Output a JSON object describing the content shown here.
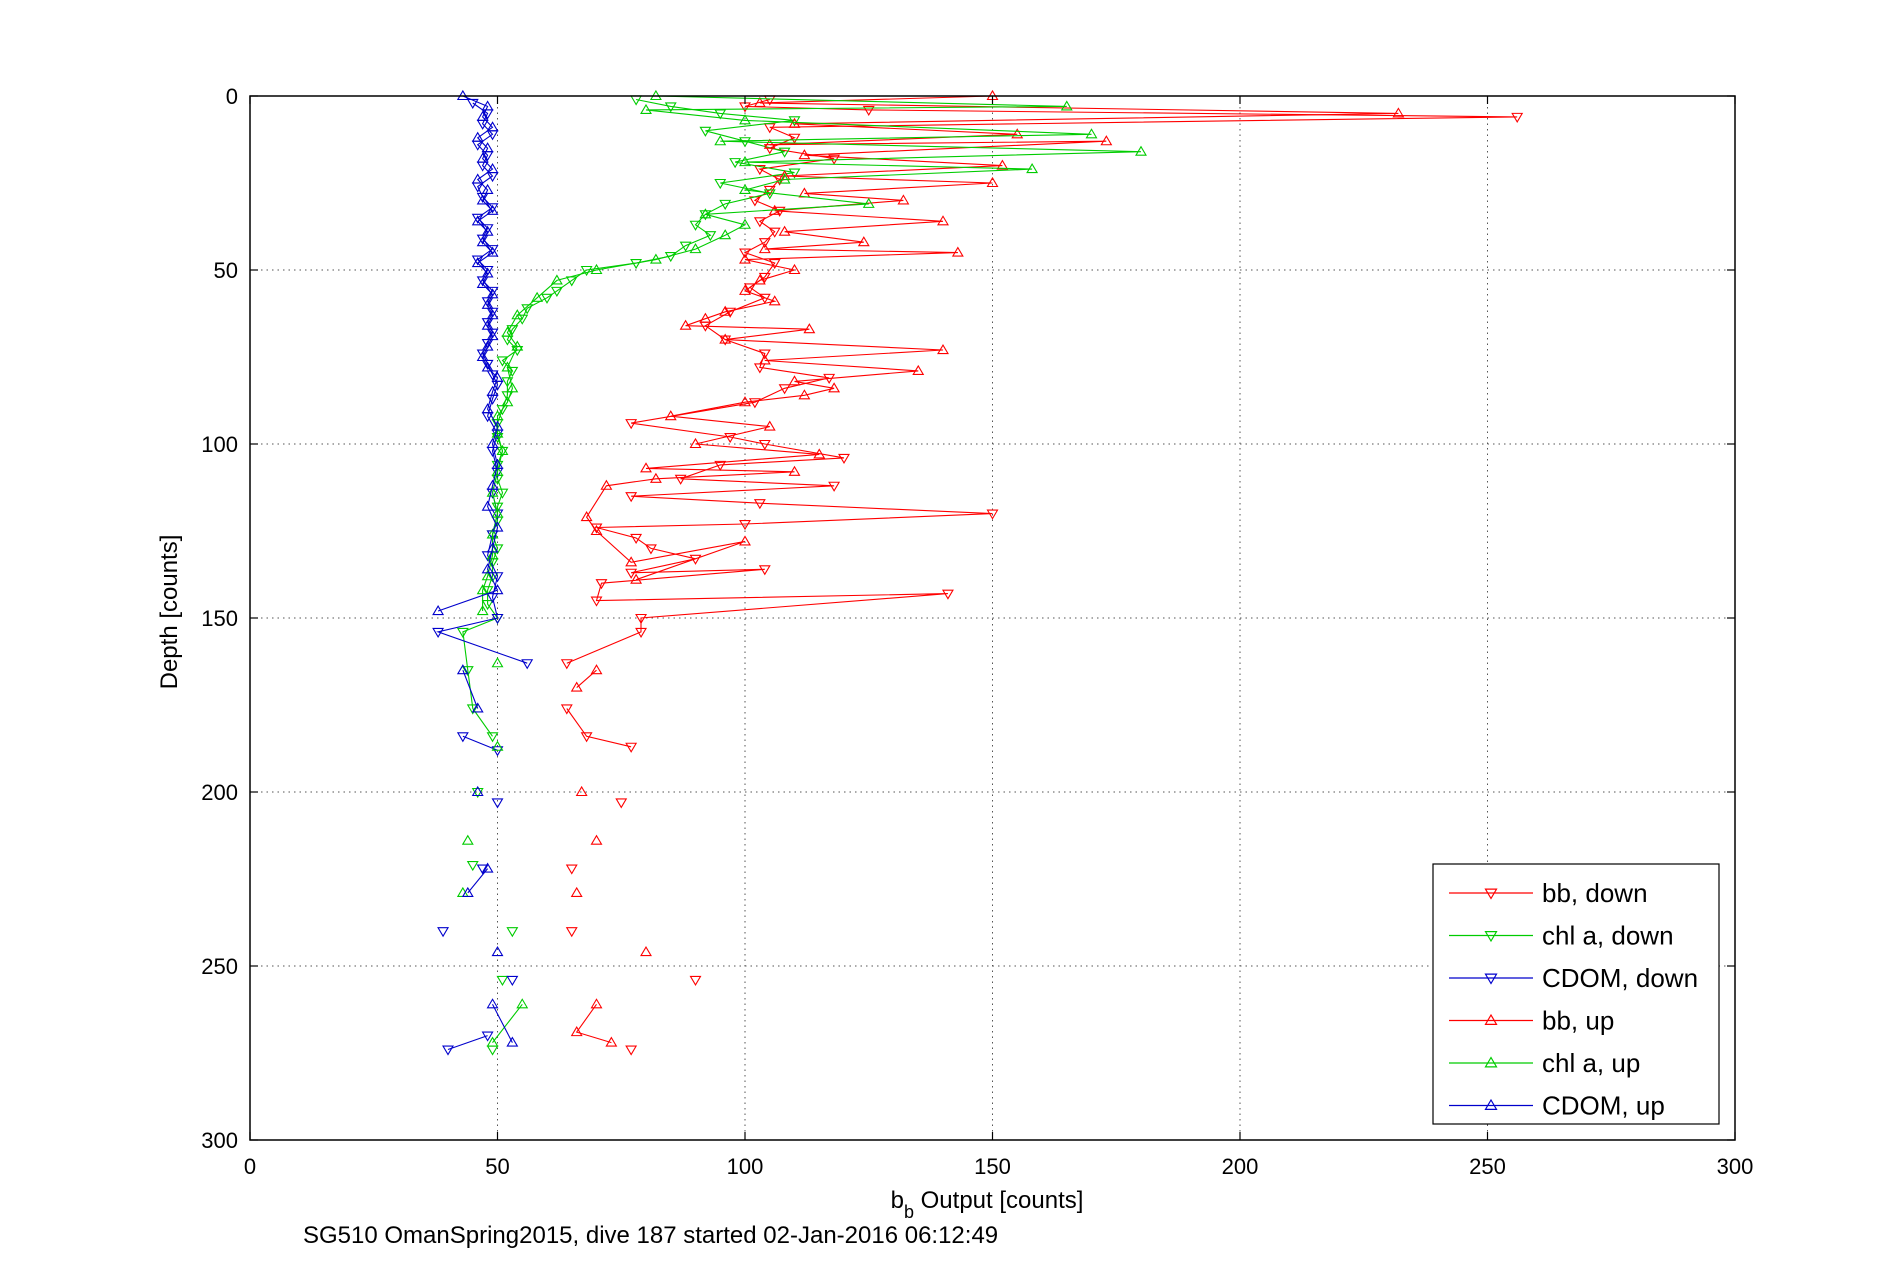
{
  "chart_data": {
    "type": "line",
    "title": "",
    "xlabel": "b_b Output [counts]",
    "xlabel_main": "b",
    "xlabel_sub": "b",
    "xlabel_rest": " Output [counts]",
    "ylabel": "Depth [counts]",
    "xlim": [
      0,
      300
    ],
    "ylim": [
      0,
      300
    ],
    "y_reversed": true,
    "grid": true,
    "x_ticks": [
      0,
      50,
      100,
      150,
      200,
      250,
      300
    ],
    "y_ticks": [
      0,
      50,
      100,
      150,
      200,
      250,
      300
    ],
    "legend_position": "bottom-right",
    "series": [
      {
        "name": "bb, down",
        "color": "#ff0000",
        "marker": "down",
        "line": true,
        "points": [
          [
            105,
            1
          ],
          [
            100,
            3
          ],
          [
            125,
            4
          ],
          [
            256,
            6
          ],
          [
            105,
            9
          ],
          [
            110,
            12
          ],
          [
            105,
            15
          ],
          [
            118,
            18
          ],
          [
            103,
            21
          ],
          [
            107,
            24
          ],
          [
            105,
            27
          ],
          [
            102,
            30
          ],
          [
            107,
            33
          ],
          [
            103,
            36
          ],
          [
            106,
            39
          ],
          [
            104,
            42
          ],
          [
            100,
            45
          ],
          [
            106,
            48
          ],
          [
            104,
            52
          ],
          [
            101,
            55
          ],
          [
            104,
            58
          ],
          [
            97,
            62
          ],
          [
            92,
            66
          ],
          [
            96,
            70
          ],
          [
            104,
            74
          ],
          [
            103,
            78
          ],
          [
            117,
            81
          ],
          [
            108,
            84
          ],
          [
            102,
            88
          ],
          [
            77,
            94
          ],
          [
            97,
            98
          ],
          [
            104,
            100
          ],
          [
            120,
            104
          ],
          [
            95,
            106
          ],
          [
            87,
            110
          ],
          [
            118,
            112
          ],
          [
            77,
            115
          ],
          [
            103,
            117
          ],
          [
            150,
            120
          ],
          [
            100,
            123
          ],
          [
            70,
            124
          ],
          [
            78,
            127
          ],
          [
            81,
            130
          ],
          [
            90,
            133
          ],
          [
            77,
            137
          ],
          [
            104,
            136
          ],
          [
            71,
            140
          ],
          [
            70,
            145
          ],
          [
            141,
            143
          ],
          [
            79,
            150
          ],
          [
            79,
            154
          ],
          [
            64,
            163
          ],
          [
            64,
            176
          ],
          [
            68,
            184
          ],
          [
            77,
            187
          ],
          [
            75,
            203
          ],
          [
            65,
            222
          ],
          [
            65,
            240
          ],
          [
            90,
            254
          ],
          [
            77,
            274
          ]
        ]
      },
      {
        "name": "chl a, down",
        "color": "#00cc00",
        "marker": "down",
        "line": true,
        "points": [
          [
            78,
            1
          ],
          [
            85,
            3
          ],
          [
            95,
            5
          ],
          [
            110,
            7
          ],
          [
            92,
            10
          ],
          [
            100,
            13
          ],
          [
            108,
            16
          ],
          [
            98,
            19
          ],
          [
            110,
            22
          ],
          [
            95,
            25
          ],
          [
            105,
            28
          ],
          [
            96,
            31
          ],
          [
            92,
            34
          ],
          [
            90,
            37
          ],
          [
            93,
            40
          ],
          [
            88,
            43
          ],
          [
            85,
            46
          ],
          [
            78,
            48
          ],
          [
            68,
            50
          ],
          [
            65,
            53
          ],
          [
            62,
            56
          ],
          [
            60,
            58
          ],
          [
            56,
            61
          ],
          [
            55,
            64
          ],
          [
            53,
            67
          ],
          [
            52,
            70
          ],
          [
            54,
            73
          ],
          [
            51,
            76
          ],
          [
            53,
            79
          ],
          [
            52,
            82
          ],
          [
            52,
            86
          ],
          [
            51,
            90
          ],
          [
            50,
            94
          ],
          [
            50,
            98
          ],
          [
            51,
            102
          ],
          [
            50,
            106
          ],
          [
            50,
            110
          ],
          [
            51,
            114
          ],
          [
            50,
            118
          ],
          [
            50,
            122
          ],
          [
            49,
            126
          ],
          [
            50,
            130
          ],
          [
            49,
            134
          ],
          [
            49,
            138
          ],
          [
            48,
            142
          ],
          [
            48,
            146
          ],
          [
            50,
            150
          ],
          [
            43,
            154
          ],
          [
            44,
            165
          ],
          [
            45,
            176
          ],
          [
            49,
            184
          ],
          [
            46,
            200
          ],
          [
            45,
            221
          ],
          [
            53,
            240
          ],
          [
            51,
            254
          ],
          [
            49,
            274
          ]
        ]
      },
      {
        "name": "CDOM, down",
        "color": "#0000cc",
        "marker": "down",
        "line": true,
        "points": [
          [
            45,
            2
          ],
          [
            48,
            5
          ],
          [
            47,
            8
          ],
          [
            49,
            11
          ],
          [
            46,
            14
          ],
          [
            48,
            17
          ],
          [
            47,
            20
          ],
          [
            49,
            23
          ],
          [
            46,
            26
          ],
          [
            47,
            29
          ],
          [
            49,
            32
          ],
          [
            46,
            35
          ],
          [
            48,
            38
          ],
          [
            47,
            41
          ],
          [
            49,
            44
          ],
          [
            46,
            47
          ],
          [
            48,
            50
          ],
          [
            47,
            53
          ],
          [
            49,
            56
          ],
          [
            48,
            59
          ],
          [
            49,
            62
          ],
          [
            48,
            65
          ],
          [
            49,
            68
          ],
          [
            48,
            71
          ],
          [
            47,
            74
          ],
          [
            48,
            77
          ],
          [
            49,
            80
          ],
          [
            50,
            83
          ],
          [
            49,
            87
          ],
          [
            48,
            92
          ],
          [
            50,
            97
          ],
          [
            49,
            102
          ],
          [
            50,
            108
          ],
          [
            49,
            114
          ],
          [
            50,
            120
          ],
          [
            49,
            126
          ],
          [
            48,
            132
          ],
          [
            50,
            138
          ],
          [
            49,
            144
          ],
          [
            50,
            150
          ],
          [
            38,
            154
          ],
          [
            56,
            163
          ],
          [
            43,
            184
          ],
          [
            50,
            188
          ],
          [
            50,
            203
          ],
          [
            47,
            222
          ],
          [
            39,
            240
          ],
          [
            53,
            254
          ],
          [
            48,
            270
          ],
          [
            40,
            274
          ]
        ]
      },
      {
        "name": "bb, up",
        "color": "#ff0000",
        "marker": "up",
        "line": true,
        "points": [
          [
            150,
            0
          ],
          [
            103,
            2
          ],
          [
            232,
            5
          ],
          [
            110,
            8
          ],
          [
            155,
            11
          ],
          [
            105,
            14
          ],
          [
            173,
            13
          ],
          [
            112,
            17
          ],
          [
            152,
            20
          ],
          [
            108,
            23
          ],
          [
            150,
            25
          ],
          [
            112,
            28
          ],
          [
            132,
            30
          ],
          [
            106,
            33
          ],
          [
            140,
            36
          ],
          [
            108,
            39
          ],
          [
            124,
            42
          ],
          [
            104,
            44
          ],
          [
            143,
            45
          ],
          [
            100,
            47
          ],
          [
            110,
            50
          ],
          [
            103,
            53
          ],
          [
            100,
            56
          ],
          [
            106,
            59
          ],
          [
            96,
            62
          ],
          [
            92,
            64
          ],
          [
            88,
            66
          ],
          [
            113,
            67
          ],
          [
            96,
            70
          ],
          [
            140,
            73
          ],
          [
            104,
            76
          ],
          [
            135,
            79
          ],
          [
            110,
            82
          ],
          [
            118,
            84
          ],
          [
            112,
            86
          ],
          [
            100,
            88
          ],
          [
            85,
            92
          ],
          [
            105,
            95
          ],
          [
            90,
            100
          ],
          [
            115,
            103
          ],
          [
            80,
            107
          ],
          [
            110,
            108
          ],
          [
            82,
            110
          ],
          [
            72,
            112
          ],
          [
            68,
            121
          ],
          [
            70,
            125
          ],
          [
            77,
            134
          ],
          [
            100,
            128
          ],
          [
            78,
            139
          ],
          [
            70,
            165
          ],
          [
            66,
            170
          ],
          [
            67,
            200
          ],
          [
            70,
            214
          ],
          [
            66,
            229
          ],
          [
            80,
            246
          ],
          [
            70,
            261
          ],
          [
            66,
            269
          ],
          [
            73,
            272
          ]
        ]
      },
      {
        "name": "chl a, up",
        "color": "#00cc00",
        "marker": "up",
        "line": true,
        "points": [
          [
            82,
            0
          ],
          [
            165,
            3
          ],
          [
            80,
            4
          ],
          [
            100,
            7
          ],
          [
            170,
            11
          ],
          [
            95,
            13
          ],
          [
            180,
            16
          ],
          [
            100,
            19
          ],
          [
            158,
            21
          ],
          [
            108,
            24
          ],
          [
            100,
            27
          ],
          [
            125,
            31
          ],
          [
            92,
            34
          ],
          [
            100,
            37
          ],
          [
            96,
            40
          ],
          [
            90,
            44
          ],
          [
            82,
            47
          ],
          [
            70,
            50
          ],
          [
            62,
            53
          ],
          [
            58,
            58
          ],
          [
            54,
            63
          ],
          [
            52,
            68
          ],
          [
            54,
            72
          ],
          [
            52,
            78
          ],
          [
            53,
            84
          ],
          [
            52,
            88
          ],
          [
            50,
            92
          ],
          [
            50,
            97
          ],
          [
            51,
            102
          ],
          [
            50,
            108
          ],
          [
            49,
            114
          ],
          [
            50,
            120
          ],
          [
            49,
            126
          ],
          [
            49,
            132
          ],
          [
            48,
            138
          ],
          [
            47,
            142
          ],
          [
            47,
            148
          ],
          [
            50,
            163
          ],
          [
            50,
            187
          ],
          [
            44,
            214
          ],
          [
            43,
            229
          ],
          [
            55,
            261
          ],
          [
            49,
            272
          ]
        ]
      },
      {
        "name": "CDOM, up",
        "color": "#0000cc",
        "marker": "up",
        "line": true,
        "points": [
          [
            43,
            0
          ],
          [
            48,
            3
          ],
          [
            47,
            6
          ],
          [
            49,
            9
          ],
          [
            46,
            12
          ],
          [
            48,
            15
          ],
          [
            47,
            18
          ],
          [
            49,
            21
          ],
          [
            46,
            24
          ],
          [
            48,
            27
          ],
          [
            47,
            30
          ],
          [
            49,
            33
          ],
          [
            46,
            36
          ],
          [
            48,
            39
          ],
          [
            47,
            42
          ],
          [
            49,
            45
          ],
          [
            46,
            48
          ],
          [
            48,
            51
          ],
          [
            47,
            54
          ],
          [
            49,
            57
          ],
          [
            48,
            60
          ],
          [
            49,
            63
          ],
          [
            48,
            66
          ],
          [
            49,
            69
          ],
          [
            48,
            72
          ],
          [
            47,
            75
          ],
          [
            48,
            78
          ],
          [
            50,
            81
          ],
          [
            49,
            85
          ],
          [
            48,
            90
          ],
          [
            50,
            95
          ],
          [
            49,
            100
          ],
          [
            50,
            106
          ],
          [
            49,
            112
          ],
          [
            48,
            118
          ],
          [
            50,
            124
          ],
          [
            49,
            130
          ],
          [
            48,
            136
          ],
          [
            50,
            142
          ],
          [
            38,
            148
          ],
          [
            43,
            165
          ],
          [
            46,
            176
          ],
          [
            46,
            200
          ],
          [
            48,
            222
          ],
          [
            44,
            229
          ],
          [
            50,
            246
          ],
          [
            49,
            261
          ],
          [
            53,
            272
          ]
        ]
      }
    ]
  },
  "footer": {
    "caption": "SG510 OmanSpring2015, dive 187 started 02-Jan-2016 06:12:49"
  }
}
